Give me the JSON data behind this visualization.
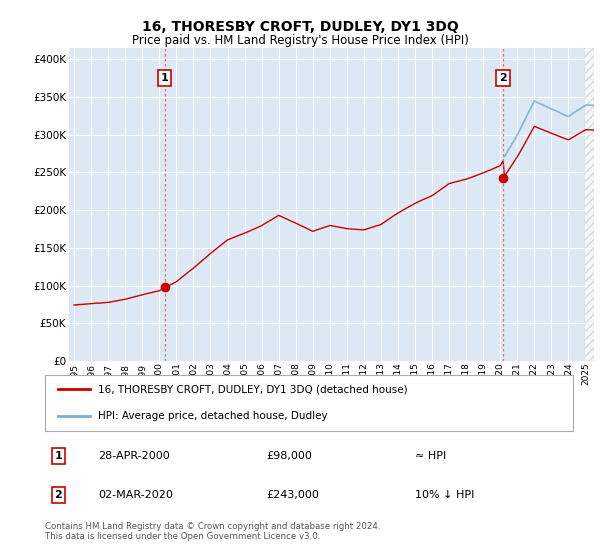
{
  "title": "16, THORESBY CROFT, DUDLEY, DY1 3DQ",
  "subtitle": "Price paid vs. HM Land Registry's House Price Index (HPI)",
  "ylabel_ticks": [
    "£0",
    "£50K",
    "£100K",
    "£150K",
    "£200K",
    "£250K",
    "£300K",
    "£350K",
    "£400K"
  ],
  "ytick_values": [
    0,
    50000,
    100000,
    150000,
    200000,
    250000,
    300000,
    350000,
    400000
  ],
  "ylim": [
    0,
    415000
  ],
  "xlim_start": 1994.7,
  "xlim_end": 2025.5,
  "purchase1_year": 2000.32,
  "purchase1_price": 98000,
  "purchase2_year": 2020.17,
  "purchase2_price": 243000,
  "legend_line1": "16, THORESBY CROFT, DUDLEY, DY1 3DQ (detached house)",
  "legend_line2": "HPI: Average price, detached house, Dudley",
  "annotation1_date": "28-APR-2000",
  "annotation1_price": "£98,000",
  "annotation1_hpi": "≈ HPI",
  "annotation2_date": "02-MAR-2020",
  "annotation2_price": "£243,000",
  "annotation2_hpi": "10% ↓ HPI",
  "footer": "Contains HM Land Registry data © Crown copyright and database right 2024.\nThis data is licensed under the Open Government Licence v3.0.",
  "bg_color": "#dce9f5",
  "grid_color": "#ffffff",
  "hpi_color": "#7ab0d4",
  "price_color": "#cc0000",
  "vline_color": "#dd6666"
}
